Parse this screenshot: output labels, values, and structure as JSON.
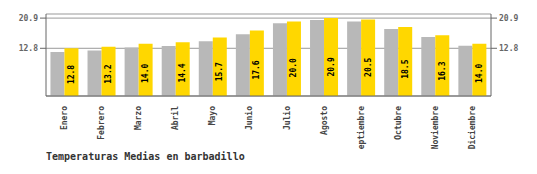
{
  "chart_data": {
    "type": "bar",
    "title": "Temperaturas Medias en barbadillo",
    "categories": [
      "Enero",
      "Febrero",
      "Marzo",
      "Abril",
      "Mayo",
      "Junio",
      "Julio",
      "Agosto",
      "Septiembre",
      "Octubre",
      "Noviembre",
      "Diciembre"
    ],
    "series": [
      {
        "color": "#B8B8B8",
        "values": [
          11.8,
          12.2,
          13.0,
          13.4,
          14.7,
          16.6,
          19.5,
          20.4,
          20.0,
          18.0,
          15.8,
          13.5
        ]
      },
      {
        "color": "#FFD700",
        "values": [
          12.8,
          13.2,
          14.0,
          14.4,
          15.7,
          17.6,
          20.0,
          20.9,
          20.5,
          18.5,
          16.3,
          14.0
        ],
        "data_labels": true,
        "value_labels": [
          "12.8",
          "13.2",
          "14.0",
          "14.4",
          "15.7",
          "17.6",
          "20.0",
          "20.9",
          "20.5",
          "18.5",
          "16.3",
          "14.0"
        ]
      }
    ],
    "ylim": [
      0,
      22.0
    ],
    "yticks": [
      12.8,
      20.9
    ],
    "y2lim": [
      0,
      22.0
    ],
    "y2ticks": [
      12.8,
      20.9
    ],
    "grid": true
  }
}
